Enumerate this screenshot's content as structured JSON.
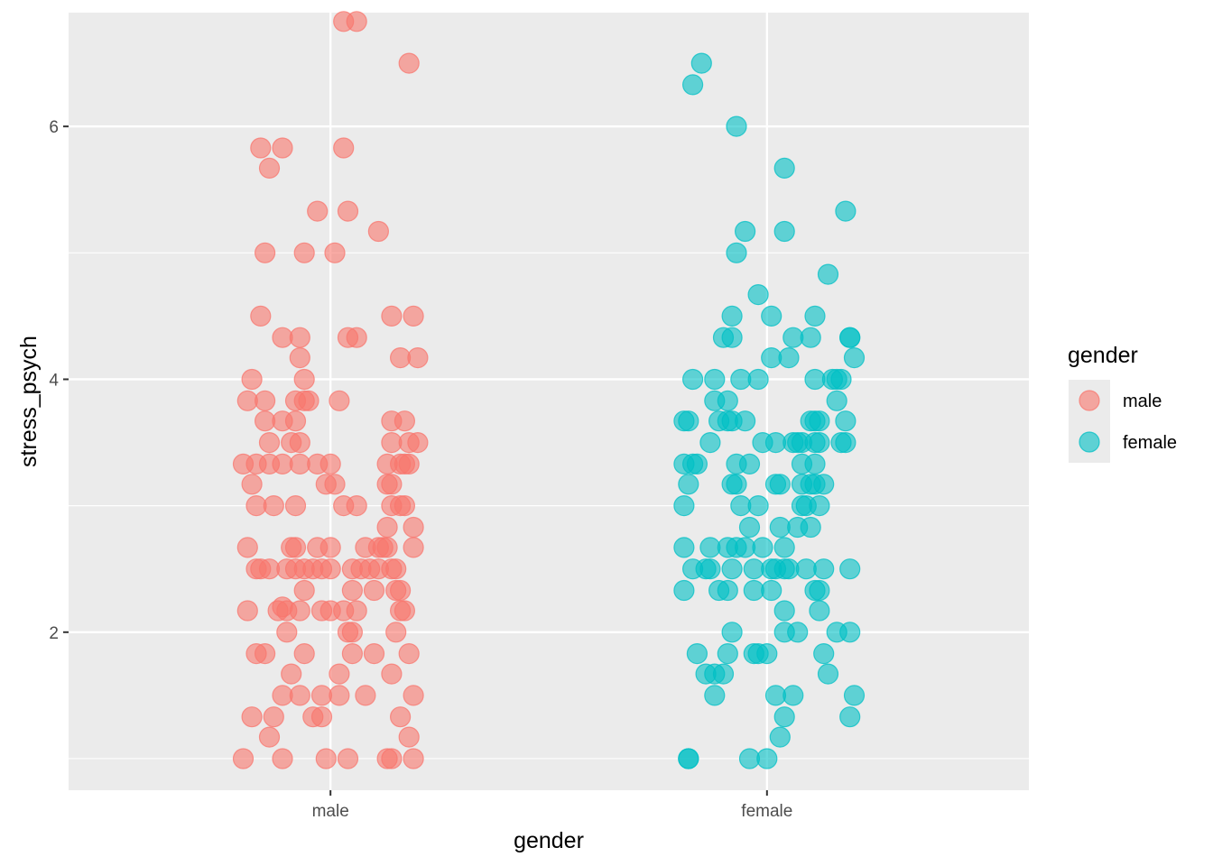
{
  "chart_data": {
    "type": "scatter",
    "title": "",
    "xlabel": "gender",
    "ylabel": "stress_psych",
    "categories": [
      "male",
      "female"
    ],
    "ylim": [
      0.75,
      6.9
    ],
    "y_ticks": [
      2,
      4,
      6
    ],
    "y_tick_labels": [
      "2",
      "4",
      "6"
    ],
    "grid": true,
    "jitter": "horizontal",
    "point_alpha": 0.6,
    "legend": {
      "title": "gender",
      "placement": "right",
      "entries": [
        {
          "label": "male",
          "color": "#F8766D"
        },
        {
          "label": "female",
          "color": "#00BFC4"
        }
      ]
    },
    "series": [
      {
        "name": "male",
        "color": "#F8766D",
        "points": [
          [
            0.8,
            1.0
          ],
          [
            0.89,
            1.0
          ],
          [
            0.99,
            1.0
          ],
          [
            1.04,
            1.0
          ],
          [
            1.13,
            1.0
          ],
          [
            1.14,
            1.0
          ],
          [
            1.19,
            1.0
          ],
          [
            0.82,
            1.33
          ],
          [
            0.87,
            1.33
          ],
          [
            0.96,
            1.33
          ],
          [
            0.98,
            1.33
          ],
          [
            1.16,
            1.33
          ],
          [
            0.86,
            1.17
          ],
          [
            1.18,
            1.17
          ],
          [
            0.89,
            1.5
          ],
          [
            0.93,
            1.5
          ],
          [
            0.98,
            1.5
          ],
          [
            1.02,
            1.5
          ],
          [
            1.08,
            1.5
          ],
          [
            1.19,
            1.5
          ],
          [
            0.91,
            1.67
          ],
          [
            1.02,
            1.67
          ],
          [
            1.14,
            1.67
          ],
          [
            0.83,
            1.83
          ],
          [
            0.85,
            1.83
          ],
          [
            0.94,
            1.83
          ],
          [
            1.05,
            1.83
          ],
          [
            1.1,
            1.83
          ],
          [
            1.18,
            1.83
          ],
          [
            0.9,
            2.0
          ],
          [
            1.04,
            2.0
          ],
          [
            1.05,
            2.0
          ],
          [
            1.15,
            2.0
          ],
          [
            0.81,
            2.17
          ],
          [
            0.88,
            2.17
          ],
          [
            0.9,
            2.17
          ],
          [
            0.93,
            2.17
          ],
          [
            0.98,
            2.17
          ],
          [
            1.0,
            2.17
          ],
          [
            1.03,
            2.17
          ],
          [
            1.06,
            2.17
          ],
          [
            1.16,
            2.17
          ],
          [
            1.17,
            2.17
          ],
          [
            0.89,
            2.2
          ],
          [
            0.94,
            2.33
          ],
          [
            1.05,
            2.33
          ],
          [
            1.1,
            2.33
          ],
          [
            1.15,
            2.33
          ],
          [
            1.16,
            2.33
          ],
          [
            0.83,
            2.5
          ],
          [
            0.84,
            2.5
          ],
          [
            0.86,
            2.5
          ],
          [
            0.9,
            2.5
          ],
          [
            0.92,
            2.5
          ],
          [
            0.94,
            2.5
          ],
          [
            0.96,
            2.5
          ],
          [
            0.98,
            2.5
          ],
          [
            1.0,
            2.5
          ],
          [
            1.05,
            2.5
          ],
          [
            1.07,
            2.5
          ],
          [
            1.09,
            2.5
          ],
          [
            1.11,
            2.5
          ],
          [
            1.14,
            2.5
          ],
          [
            1.15,
            2.5
          ],
          [
            0.81,
            2.67
          ],
          [
            0.91,
            2.67
          ],
          [
            0.92,
            2.67
          ],
          [
            0.97,
            2.67
          ],
          [
            1.0,
            2.67
          ],
          [
            1.08,
            2.67
          ],
          [
            1.11,
            2.67
          ],
          [
            1.12,
            2.67
          ],
          [
            1.13,
            2.67
          ],
          [
            1.19,
            2.67
          ],
          [
            1.13,
            2.83
          ],
          [
            1.19,
            2.83
          ],
          [
            0.83,
            3.0
          ],
          [
            0.87,
            3.0
          ],
          [
            0.92,
            3.0
          ],
          [
            1.03,
            3.0
          ],
          [
            1.06,
            3.0
          ],
          [
            1.14,
            3.0
          ],
          [
            1.16,
            3.0
          ],
          [
            1.17,
            3.0
          ],
          [
            0.82,
            3.17
          ],
          [
            0.99,
            3.17
          ],
          [
            1.01,
            3.17
          ],
          [
            1.13,
            3.17
          ],
          [
            1.14,
            3.17
          ],
          [
            0.8,
            3.33
          ],
          [
            0.83,
            3.33
          ],
          [
            0.86,
            3.33
          ],
          [
            0.89,
            3.33
          ],
          [
            0.93,
            3.33
          ],
          [
            0.97,
            3.33
          ],
          [
            1.0,
            3.33
          ],
          [
            1.13,
            3.33
          ],
          [
            1.16,
            3.33
          ],
          [
            1.17,
            3.33
          ],
          [
            1.18,
            3.33
          ],
          [
            0.86,
            3.5
          ],
          [
            0.91,
            3.5
          ],
          [
            0.93,
            3.5
          ],
          [
            1.14,
            3.5
          ],
          [
            1.18,
            3.5
          ],
          [
            1.2,
            3.5
          ],
          [
            0.85,
            3.67
          ],
          [
            0.89,
            3.67
          ],
          [
            0.92,
            3.67
          ],
          [
            1.14,
            3.67
          ],
          [
            1.17,
            3.67
          ],
          [
            0.81,
            3.83
          ],
          [
            0.85,
            3.83
          ],
          [
            0.92,
            3.83
          ],
          [
            0.94,
            3.83
          ],
          [
            0.95,
            3.83
          ],
          [
            1.02,
            3.83
          ],
          [
            0.82,
            4.0
          ],
          [
            0.94,
            4.0
          ],
          [
            0.93,
            4.17
          ],
          [
            1.16,
            4.17
          ],
          [
            1.2,
            4.17
          ],
          [
            0.89,
            4.33
          ],
          [
            0.93,
            4.33
          ],
          [
            1.04,
            4.33
          ],
          [
            1.06,
            4.33
          ],
          [
            0.84,
            4.5
          ],
          [
            1.14,
            4.5
          ],
          [
            1.19,
            4.5
          ],
          [
            0.85,
            5.0
          ],
          [
            0.94,
            5.0
          ],
          [
            1.01,
            5.0
          ],
          [
            1.11,
            5.17
          ],
          [
            0.97,
            5.33
          ],
          [
            1.04,
            5.33
          ],
          [
            0.86,
            5.67
          ],
          [
            0.84,
            5.83
          ],
          [
            0.89,
            5.83
          ],
          [
            1.03,
            5.83
          ],
          [
            1.18,
            6.5
          ],
          [
            1.03,
            6.83
          ],
          [
            1.06,
            6.83
          ]
        ]
      },
      {
        "name": "female",
        "color": "#00BFC4",
        "points": [
          [
            1.82,
            1.0
          ],
          [
            1.82,
            1.0
          ],
          [
            1.96,
            1.0
          ],
          [
            2.0,
            1.0
          ],
          [
            1.88,
            1.5
          ],
          [
            2.02,
            1.5
          ],
          [
            2.06,
            1.5
          ],
          [
            2.2,
            1.5
          ],
          [
            2.04,
            1.33
          ],
          [
            2.19,
            1.33
          ],
          [
            2.03,
            1.17
          ],
          [
            1.86,
            1.67
          ],
          [
            1.88,
            1.67
          ],
          [
            1.9,
            1.67
          ],
          [
            2.14,
            1.67
          ],
          [
            1.84,
            1.83
          ],
          [
            1.91,
            1.83
          ],
          [
            1.97,
            1.83
          ],
          [
            1.98,
            1.83
          ],
          [
            2.0,
            1.83
          ],
          [
            2.13,
            1.83
          ],
          [
            1.92,
            2.0
          ],
          [
            2.04,
            2.0
          ],
          [
            2.07,
            2.0
          ],
          [
            2.16,
            2.0
          ],
          [
            2.19,
            2.0
          ],
          [
            2.04,
            2.17
          ],
          [
            2.12,
            2.17
          ],
          [
            1.81,
            2.33
          ],
          [
            1.89,
            2.33
          ],
          [
            1.91,
            2.33
          ],
          [
            1.97,
            2.33
          ],
          [
            2.01,
            2.33
          ],
          [
            2.11,
            2.33
          ],
          [
            2.12,
            2.33
          ],
          [
            1.83,
            2.5
          ],
          [
            1.86,
            2.5
          ],
          [
            1.87,
            2.5
          ],
          [
            1.92,
            2.5
          ],
          [
            1.97,
            2.5
          ],
          [
            2.01,
            2.5
          ],
          [
            2.02,
            2.5
          ],
          [
            2.04,
            2.5
          ],
          [
            2.05,
            2.5
          ],
          [
            2.09,
            2.5
          ],
          [
            2.13,
            2.5
          ],
          [
            2.19,
            2.5
          ],
          [
            1.81,
            2.67
          ],
          [
            1.87,
            2.67
          ],
          [
            1.91,
            2.67
          ],
          [
            1.93,
            2.67
          ],
          [
            1.95,
            2.67
          ],
          [
            1.99,
            2.67
          ],
          [
            2.04,
            2.67
          ],
          [
            1.96,
            2.83
          ],
          [
            2.03,
            2.83
          ],
          [
            2.07,
            2.83
          ],
          [
            2.1,
            2.83
          ],
          [
            1.81,
            3.0
          ],
          [
            1.94,
            3.0
          ],
          [
            1.98,
            3.0
          ],
          [
            2.08,
            3.0
          ],
          [
            2.09,
            3.0
          ],
          [
            2.12,
            3.0
          ],
          [
            1.82,
            3.17
          ],
          [
            1.92,
            3.17
          ],
          [
            1.93,
            3.17
          ],
          [
            2.02,
            3.17
          ],
          [
            2.03,
            3.17
          ],
          [
            2.08,
            3.17
          ],
          [
            2.1,
            3.17
          ],
          [
            2.11,
            3.17
          ],
          [
            2.13,
            3.17
          ],
          [
            1.81,
            3.33
          ],
          [
            1.83,
            3.33
          ],
          [
            1.84,
            3.33
          ],
          [
            1.93,
            3.33
          ],
          [
            1.96,
            3.33
          ],
          [
            2.08,
            3.33
          ],
          [
            2.11,
            3.33
          ],
          [
            1.87,
            3.5
          ],
          [
            1.99,
            3.5
          ],
          [
            2.02,
            3.5
          ],
          [
            2.06,
            3.5
          ],
          [
            2.07,
            3.5
          ],
          [
            2.08,
            3.5
          ],
          [
            2.11,
            3.5
          ],
          [
            2.12,
            3.5
          ],
          [
            2.17,
            3.5
          ],
          [
            2.18,
            3.5
          ],
          [
            1.81,
            3.67
          ],
          [
            1.82,
            3.67
          ],
          [
            1.89,
            3.67
          ],
          [
            1.91,
            3.67
          ],
          [
            1.92,
            3.67
          ],
          [
            1.95,
            3.67
          ],
          [
            2.1,
            3.67
          ],
          [
            2.11,
            3.67
          ],
          [
            2.12,
            3.67
          ],
          [
            2.18,
            3.67
          ],
          [
            1.88,
            3.83
          ],
          [
            1.91,
            3.83
          ],
          [
            2.16,
            3.83
          ],
          [
            1.83,
            4.0
          ],
          [
            1.88,
            4.0
          ],
          [
            1.94,
            4.0
          ],
          [
            1.98,
            4.0
          ],
          [
            2.11,
            4.0
          ],
          [
            2.15,
            4.0
          ],
          [
            2.16,
            4.0
          ],
          [
            2.17,
            4.0
          ],
          [
            2.01,
            4.17
          ],
          [
            2.05,
            4.17
          ],
          [
            2.2,
            4.17
          ],
          [
            1.9,
            4.33
          ],
          [
            1.92,
            4.33
          ],
          [
            2.06,
            4.33
          ],
          [
            2.1,
            4.33
          ],
          [
            2.19,
            4.33
          ],
          [
            2.19,
            4.33
          ],
          [
            1.92,
            4.5
          ],
          [
            2.01,
            4.5
          ],
          [
            2.11,
            4.5
          ],
          [
            1.98,
            4.67
          ],
          [
            2.14,
            4.83
          ],
          [
            1.93,
            5.0
          ],
          [
            1.95,
            5.17
          ],
          [
            2.04,
            5.17
          ],
          [
            2.18,
            5.33
          ],
          [
            2.04,
            5.67
          ],
          [
            1.93,
            6.0
          ],
          [
            1.83,
            6.33
          ],
          [
            1.85,
            6.5
          ]
        ]
      }
    ]
  }
}
